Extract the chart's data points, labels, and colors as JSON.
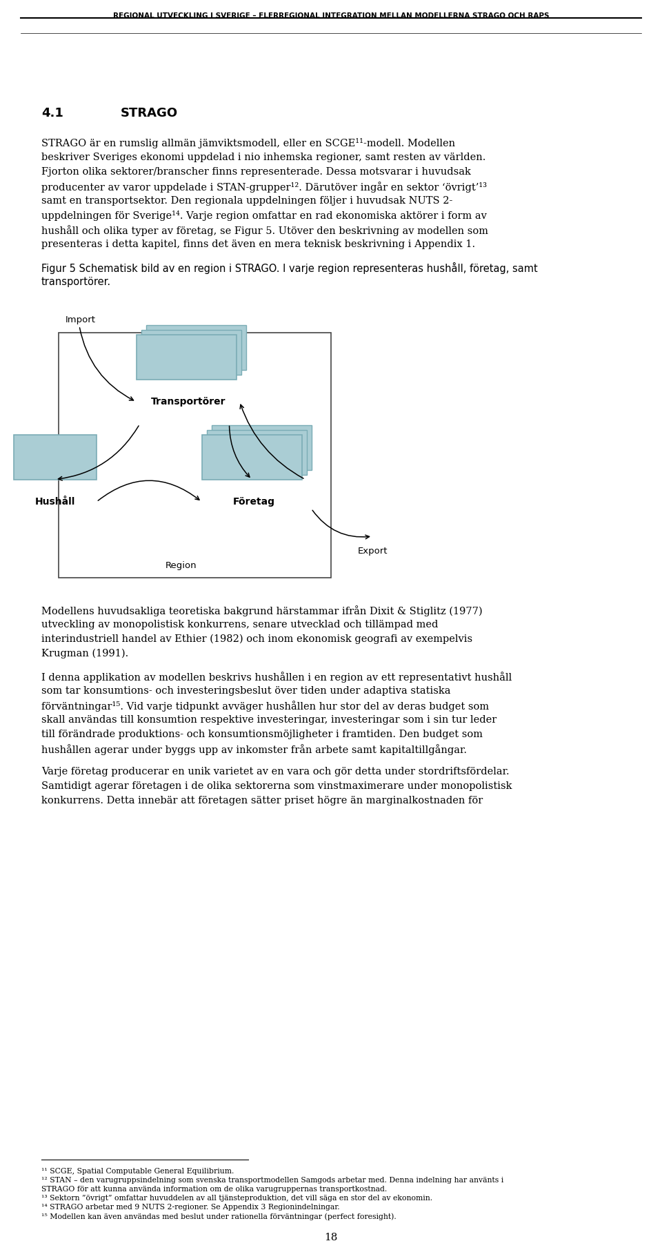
{
  "header_text": "REGIONAL UTVECKLING I SVERIGE – FLERREGIONAL INTEGRATION MELLAN MODELLERNA STRAGO OCH RAPS",
  "background_color": "#ffffff",
  "section_title": "4.1",
  "section_title2": "STRAGO",
  "box_color": "#aacdd4",
  "box_edge_color": "#7aacb5",
  "page_number": "18",
  "para1_lines": [
    "STRAGO är en rumslig allmän jämviktsmodell, eller en SCGE¹¹-modell. Modellen",
    "beskriver Sveriges ekonomi uppdelad i nio inhemska regioner, samt resten av världen.",
    "Fjorton olika sektorer/branscher finns representerade. Dessa motsvarar i huvudsak",
    "producenter av varor uppdelade i STAN-grupper¹². Därutöver ingår en sektor ‘övrigt’¹³",
    "samt en transportsektor. Den regionala uppdelningen följer i huvudsak NUTS 2-",
    "uppdelningen för Sverige¹⁴. Varje region omfattar en rad ekonomiska aktörer i form av",
    "hushåll och olika typer av företag, se Figur 5. Utöver den beskrivning av modellen som",
    "presenteras i detta kapitel, finns det även en mera teknisk beskrivning i Appendix 1."
  ],
  "fig_caption_lines": [
    "Figur 5 Schematisk bild av en region i STRAGO. I varje region representeras hushåll, företag, samt",
    "transportörer."
  ],
  "post_para1_lines": [
    "Modellens huvudsakliga teoretiska bakgrund härstammar ifrån Dixit & Stiglitz (1977)",
    "utveckling av monopolistisk konkurrens, senare utvecklad och tillämpad med",
    "interindustriell handel av Ethier (1982) och inom ekonomisk geografi av exempelvis",
    "Krugman (1991)."
  ],
  "post_para2_lines": [
    "I denna applikation av modellen beskrivs hushållen i en region av ett representativt hushåll",
    "som tar konsumtions- och investeringsbeslut över tiden under adaptiva statiska",
    "förväntningar¹⁵. Vid varje tidpunkt avväger hushållen hur stor del av deras budget som",
    "skall användas till konsumtion respektive investeringar, investeringar som i sin tur leder",
    "till förändrade produktions- och konsumtionsmöjligheter i framtiden. Den budget som",
    "hushållen agerar under byggs upp av inkomster från arbete samt kapitaltillgångar."
  ],
  "post_para3_lines": [
    "Varje företag producerar en unik varietet av en vara och gör detta under stordriftsfördelar.",
    "Samtidigt agerar företagen i de olika sektorerna som vinstmaximerare under monopolistisk",
    "konkurrens. Detta innebär att företagen sätter priset högre än marginalkostnaden för"
  ],
  "footnotes": [
    "¹¹ SCGE, Spatial Computable General Equilibrium.",
    "¹² STAN – den varugruppsindelning som svenska  transportmodellen Samgods arbetar med. Denna indelning har använts i STRAGO för att kunna använda information om de olika varugruppernas transportkostnad.",
    "¹³ Sektorn ”övrigt” omfattar huvuddelen av all tjänsteproduktion, det vill säga en stor del av ekonomin.",
    "¹⁴ STRAGO arbetar med 9 NUTS 2-regioner.  Se Appendix 3 Regionindelningar.",
    "¹⁵ Modellen kan även användas med beslut under rationella förväntningar (perfect foresight)."
  ]
}
